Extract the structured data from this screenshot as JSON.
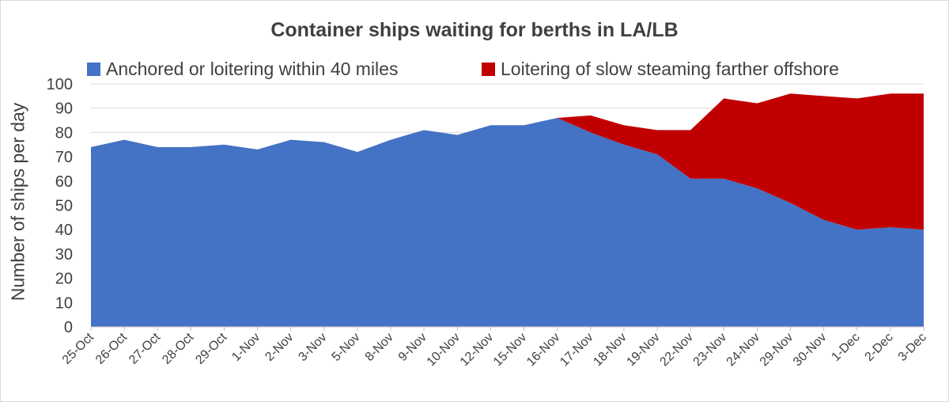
{
  "chart_data": {
    "type": "area",
    "stacked": true,
    "title": "Container ships waiting for berths in LA/LB",
    "xlabel": "",
    "ylabel": "Number of ships per day",
    "ylim": [
      0,
      100
    ],
    "yticks": [
      0,
      10,
      20,
      30,
      40,
      50,
      60,
      70,
      80,
      90,
      100
    ],
    "grid": true,
    "legend_position": "top",
    "categories": [
      "25-Oct",
      "26-Oct",
      "27-Oct",
      "28-Oct",
      "29-Oct",
      "1-Nov",
      "2-Nov",
      "3-Nov",
      "5-Nov",
      "8-Nov",
      "9-Nov",
      "10-Nov",
      "12-Nov",
      "15-Nov",
      "16-Nov",
      "17-Nov",
      "18-Nov",
      "19-Nov",
      "22-Nov",
      "23-Nov",
      "24-Nov",
      "29-Nov",
      "30-Nov",
      "1-Dec",
      "2-Dec",
      "3-Dec"
    ],
    "series": [
      {
        "name": "Anchored or loitering within 40 miles",
        "color": "#4472c4",
        "values": [
          74,
          77,
          74,
          74,
          75,
          73,
          77,
          76,
          72,
          77,
          81,
          79,
          83,
          83,
          86,
          80,
          75,
          71,
          61,
          61,
          57,
          51,
          44,
          40,
          41,
          40
        ]
      },
      {
        "name": "Loitering of slow steaming farther offshore",
        "color": "#c00000",
        "values": [
          0,
          0,
          0,
          0,
          0,
          0,
          0,
          0,
          0,
          0,
          0,
          0,
          0,
          0,
          0,
          7,
          8,
          10,
          20,
          33,
          35,
          45,
          51,
          54,
          55,
          56
        ]
      }
    ]
  }
}
